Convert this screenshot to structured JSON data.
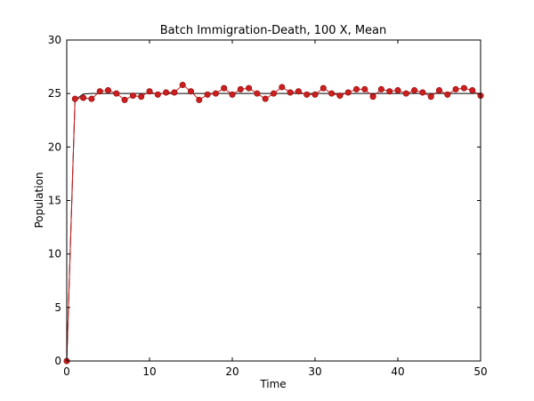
{
  "chart_data": {
    "type": "line",
    "title": "Batch Immigration-Death, 100 X, Mean",
    "xlabel": "Time",
    "ylabel": "Population",
    "xlim": [
      0,
      50
    ],
    "ylim": [
      0,
      30
    ],
    "xticks": [
      0,
      10,
      20,
      30,
      40,
      50
    ],
    "yticks": [
      0,
      5,
      10,
      15,
      20,
      25,
      30
    ],
    "grid": false,
    "colors": {
      "points": "#cc1f1f",
      "simulated_line": "#cc1f1f",
      "theory_line": "#000000"
    },
    "series": [
      {
        "style": "points",
        "x": [
          0,
          1,
          2,
          3,
          4,
          5,
          6,
          7,
          8,
          9,
          10,
          11,
          12,
          13,
          14,
          15,
          16,
          17,
          18,
          19,
          20,
          21,
          22,
          23,
          24,
          25,
          26,
          27,
          28,
          29,
          30,
          31,
          32,
          33,
          34,
          35,
          36,
          37,
          38,
          39,
          40,
          41,
          42,
          43,
          44,
          45,
          46,
          47,
          48,
          49,
          50
        ],
        "y": [
          0,
          24.5,
          24.6,
          24.5,
          25.2,
          25.3,
          25.0,
          24.4,
          24.8,
          24.7,
          25.2,
          24.9,
          25.1,
          25.1,
          25.8,
          25.2,
          24.4,
          24.9,
          25.0,
          25.5,
          24.9,
          25.4,
          25.5,
          25.0,
          24.5,
          25.0,
          25.6,
          25.1,
          25.2,
          24.9,
          24.9,
          25.5,
          25.0,
          24.8,
          25.1,
          25.4,
          25.4,
          24.7,
          25.4,
          25.2,
          25.3,
          25.0,
          25.3,
          25.1,
          24.7,
          25.3,
          24.9,
          25.4,
          25.5,
          25.3,
          24.8
        ]
      },
      {
        "style": "line",
        "x": [
          0,
          1,
          2,
          3,
          5,
          10,
          20,
          30,
          40,
          50
        ],
        "y": [
          0,
          24.4,
          24.95,
          25.0,
          25.0,
          25.0,
          25.0,
          25.0,
          25.0,
          25.0
        ]
      }
    ]
  }
}
